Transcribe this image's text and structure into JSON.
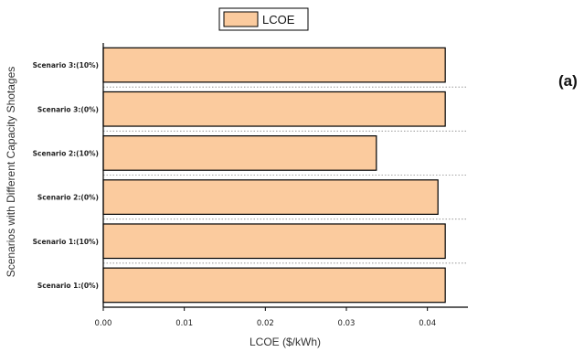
{
  "panel_label": "(a)",
  "colors": {
    "bar_fill": "#FBCB9E",
    "bar_stroke": "#000000",
    "axis": "#000000",
    "grid": "#888888"
  },
  "chart_data": {
    "type": "bar",
    "orientation": "horizontal",
    "categories": [
      "Scenario 1:(0%)",
      "Scenario 1:(10%)",
      "Scenario 2:(0%)",
      "Scenario 2:(10%)",
      "Scenario 3:(0%)",
      "Scenario 3:(10%)"
    ],
    "series": [
      {
        "name": "LCOE",
        "values": [
          0.0422,
          0.0422,
          0.0413,
          0.0337,
          0.0422,
          0.0422
        ]
      }
    ],
    "xlabel": "LCOE ($/kWh)",
    "ylabel": "Scenarios with Different Capacity Shotages",
    "xlim": [
      0,
      0.045
    ],
    "xticks": [
      "0.00",
      "0.01",
      "0.02",
      "0.03",
      "0.04"
    ],
    "grid": "dotted horizontal separators",
    "legend": "top-center"
  }
}
